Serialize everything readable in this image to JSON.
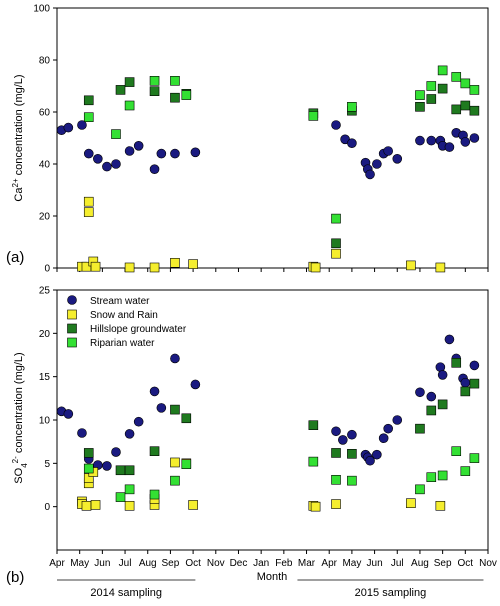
{
  "colors": {
    "stream": "#1a1a80",
    "snow": "#f5ee2e",
    "hillslope": "#1f7a1f",
    "riparian": "#33e033"
  },
  "x_axis": {
    "title": "Month",
    "months": [
      "Apr",
      "May",
      "Jun",
      "Jul",
      "Aug",
      "Sep",
      "Oct",
      "Nov",
      "Dec",
      "Jan",
      "Feb",
      "Mar",
      "Apr",
      "May",
      "Jun",
      "Jul",
      "Aug",
      "Sep",
      "Oct",
      "Nov"
    ],
    "sampling_periods": [
      {
        "label": "2014 sampling",
        "start": 0,
        "end": 6.1
      },
      {
        "label": "2015 sampling",
        "start": 10.6,
        "end": 18.8
      }
    ]
  },
  "panels": {
    "a": {
      "label": "(a)",
      "ylabel_main": "Ca",
      "ylabel_sup": "2+",
      "ylabel_rest": " concentration (mg/L)"
    },
    "b": {
      "label": "(b)",
      "ylabel_main": "SO",
      "ylabel_sub": "4",
      "ylabel_sup": "2-",
      "ylabel_rest": " concentration (mg/L)"
    }
  },
  "legend": [
    {
      "key": "stream",
      "label": "Stream water"
    },
    {
      "key": "snow",
      "label": "Snow and Rain"
    },
    {
      "key": "hillslope",
      "label": "Hillslope groundwater"
    },
    {
      "key": "riparian",
      "label": "Riparian water"
    }
  ],
  "chart_data": [
    {
      "type": "scatter",
      "panel": "a",
      "ylim": [
        0,
        100
      ],
      "yticks": [
        0,
        20,
        40,
        60,
        80,
        100
      ],
      "xlim": [
        0,
        19
      ],
      "series": [
        {
          "name": "Stream water",
          "key": "stream",
          "points": [
            [
              0.2,
              53
            ],
            [
              0.5,
              54
            ],
            [
              1.1,
              55
            ],
            [
              1.4,
              44
            ],
            [
              1.8,
              42
            ],
            [
              2.2,
              39
            ],
            [
              2.6,
              40
            ],
            [
              3.2,
              45
            ],
            [
              3.6,
              47
            ],
            [
              4.3,
              38
            ],
            [
              4.6,
              44
            ],
            [
              5.2,
              44
            ],
            [
              6.1,
              44.5
            ],
            [
              12.3,
              55
            ],
            [
              12.7,
              49.5
            ],
            [
              13.0,
              48
            ],
            [
              13.6,
              40.5
            ],
            [
              13.7,
              38
            ],
            [
              13.8,
              36
            ],
            [
              14.1,
              40
            ],
            [
              14.4,
              44
            ],
            [
              14.6,
              45
            ],
            [
              15.0,
              42
            ],
            [
              16.0,
              49
            ],
            [
              16.5,
              49
            ],
            [
              16.9,
              49
            ],
            [
              17.0,
              47
            ],
            [
              17.3,
              46.5
            ],
            [
              17.6,
              52
            ],
            [
              17.9,
              51
            ],
            [
              18.0,
              48.5
            ],
            [
              18.4,
              50
            ]
          ]
        },
        {
          "name": "Snow and Rain",
          "key": "snow",
          "points": [
            [
              1.1,
              0.5
            ],
            [
              1.3,
              0.5
            ],
            [
              1.4,
              21.5
            ],
            [
              1.4,
              25.5
            ],
            [
              1.6,
              2.5
            ],
            [
              1.7,
              0.5
            ],
            [
              3.2,
              0.2
            ],
            [
              4.3,
              0.2
            ],
            [
              5.2,
              2
            ],
            [
              6.0,
              1.5
            ],
            [
              11.3,
              0.5
            ],
            [
              11.4,
              0.2
            ],
            [
              12.3,
              5.5
            ],
            [
              15.6,
              1
            ],
            [
              16.9,
              0.2
            ]
          ]
        },
        {
          "name": "Hillslope groundwater",
          "key": "hillslope",
          "points": [
            [
              1.4,
              64.5
            ],
            [
              2.8,
              68.5
            ],
            [
              3.2,
              71.5
            ],
            [
              4.3,
              68
            ],
            [
              5.2,
              65.5
            ],
            [
              5.7,
              67
            ],
            [
              11.3,
              59.5
            ],
            [
              12.3,
              9.5
            ],
            [
              13.0,
              60.5
            ],
            [
              16.0,
              62
            ],
            [
              16.5,
              65
            ],
            [
              17.0,
              69
            ],
            [
              17.6,
              61
            ],
            [
              18.0,
              62.5
            ],
            [
              18.4,
              60.5
            ]
          ]
        },
        {
          "name": "Riparian water",
          "key": "riparian",
          "points": [
            [
              1.4,
              58
            ],
            [
              2.6,
              51.5
            ],
            [
              3.2,
              62.5
            ],
            [
              4.3,
              72
            ],
            [
              5.2,
              72
            ],
            [
              5.7,
              66.5
            ],
            [
              11.3,
              58.5
            ],
            [
              12.3,
              19
            ],
            [
              13.0,
              62
            ],
            [
              16.0,
              66.5
            ],
            [
              16.5,
              70
            ],
            [
              17.0,
              76
            ],
            [
              17.6,
              73.5
            ],
            [
              18.0,
              71
            ],
            [
              18.4,
              68.5
            ]
          ]
        }
      ]
    },
    {
      "type": "scatter",
      "panel": "b",
      "ylim": [
        -5,
        25
      ],
      "yticks": [
        0,
        5,
        10,
        15,
        20,
        25
      ],
      "xlim": [
        0,
        19
      ],
      "series": [
        {
          "name": "Stream water",
          "key": "stream",
          "points": [
            [
              0.2,
              11
            ],
            [
              0.5,
              10.7
            ],
            [
              1.1,
              8.5
            ],
            [
              1.4,
              5.5
            ],
            [
              1.8,
              4.8
            ],
            [
              2.2,
              4.7
            ],
            [
              2.6,
              6.3
            ],
            [
              3.2,
              8.4
            ],
            [
              3.6,
              9.8
            ],
            [
              4.3,
              13.3
            ],
            [
              4.6,
              11.4
            ],
            [
              5.2,
              17.1
            ],
            [
              6.1,
              14.1
            ],
            [
              12.3,
              8.7
            ],
            [
              12.6,
              7.7
            ],
            [
              13.0,
              8.3
            ],
            [
              13.6,
              6
            ],
            [
              13.7,
              5.7
            ],
            [
              13.8,
              5.3
            ],
            [
              14.1,
              6
            ],
            [
              14.4,
              7.9
            ],
            [
              14.6,
              9.0
            ],
            [
              15.0,
              10.0
            ],
            [
              16.0,
              13.2
            ],
            [
              16.5,
              12.7
            ],
            [
              16.9,
              16.1
            ],
            [
              17.0,
              15.2
            ],
            [
              17.3,
              19.3
            ],
            [
              17.6,
              17.1
            ],
            [
              17.9,
              14.8
            ],
            [
              18.0,
              14.3
            ],
            [
              18.4,
              16.3
            ]
          ]
        },
        {
          "name": "Snow and Rain",
          "key": "snow",
          "points": [
            [
              1.1,
              0.6
            ],
            [
              1.1,
              0.3
            ],
            [
              1.3,
              0.1
            ],
            [
              1.4,
              2.7
            ],
            [
              1.4,
              3.3
            ],
            [
              1.6,
              4.0
            ],
            [
              1.7,
              0.2
            ],
            [
              3.2,
              0.1
            ],
            [
              4.3,
              0.2
            ],
            [
              4.3,
              0.9
            ],
            [
              5.2,
              5.1
            ],
            [
              5.7,
              5.0
            ],
            [
              6.0,
              0.2
            ],
            [
              11.3,
              0.1
            ],
            [
              11.4,
              0.0
            ],
            [
              12.3,
              0.3
            ],
            [
              15.6,
              0.4
            ],
            [
              16.9,
              0.1
            ]
          ]
        },
        {
          "name": "Hillslope groundwater",
          "key": "hillslope",
          "points": [
            [
              1.4,
              6.2
            ],
            [
              2.8,
              4.2
            ],
            [
              3.2,
              4.2
            ],
            [
              4.3,
              6.4
            ],
            [
              5.2,
              11.2
            ],
            [
              5.7,
              10.2
            ],
            [
              11.3,
              9.4
            ],
            [
              12.3,
              6.2
            ],
            [
              13.0,
              6.1
            ],
            [
              16.0,
              9.0
            ],
            [
              16.5,
              11.1
            ],
            [
              17.0,
              11.8
            ],
            [
              17.6,
              16.6
            ],
            [
              18.0,
              13.3
            ],
            [
              18.4,
              14.2
            ]
          ]
        },
        {
          "name": "Riparian water",
          "key": "riparian",
          "points": [
            [
              1.4,
              4.4
            ],
            [
              2.8,
              1.1
            ],
            [
              3.2,
              2.0
            ],
            [
              4.3,
              1.4
            ],
            [
              5.2,
              3.0
            ],
            [
              5.7,
              4.9
            ],
            [
              11.3,
              5.2
            ],
            [
              12.3,
              3.1
            ],
            [
              13.0,
              3.0
            ],
            [
              16.0,
              2.0
            ],
            [
              16.5,
              3.4
            ],
            [
              17.0,
              3.6
            ],
            [
              17.6,
              6.4
            ],
            [
              18.0,
              4.1
            ],
            [
              18.4,
              5.6
            ]
          ]
        }
      ]
    }
  ]
}
